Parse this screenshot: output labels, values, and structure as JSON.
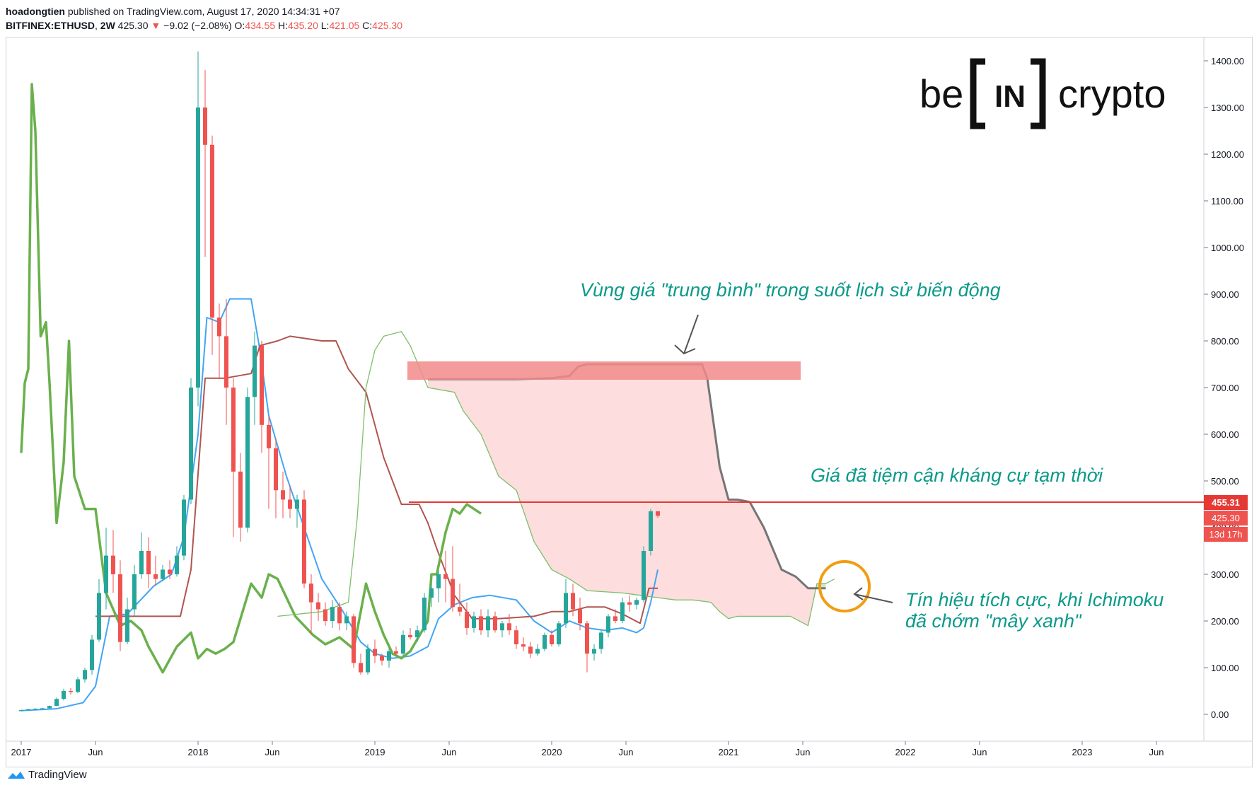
{
  "header": {
    "author": "hoadongtien",
    "published_text": "published on TradingView.com, August 17, 2020 14:34:31 +07",
    "symbol": "BITFINEX:ETHUSD",
    "interval": "2W",
    "last": "425.30",
    "change_arrow": "▼",
    "change": "−9.02 (−2.08%)",
    "o_label": "O:",
    "o": "434.55",
    "h_label": "H:",
    "h": "435.20",
    "l_label": "L:",
    "l": "421.05",
    "c_label": "C:",
    "c": "425.30"
  },
  "footer": {
    "brand": "TradingView",
    "brand_icon": "tradingview-logo-icon"
  },
  "logo": {
    "left": "be",
    "middle": "IN",
    "right": "crypto"
  },
  "colors": {
    "up": "#26a69a",
    "down": "#ef5350",
    "tenkan": "#42a5f5",
    "kijun": "#b0554f",
    "chikou": "#6ab04c",
    "span_line": "#7cbf6a",
    "cloud_red": "#fdd9d9",
    "cloud_green": "#c8e6c0",
    "resistance": "#e53935",
    "highlight": "#f28b8b",
    "annot": "#0a9a89",
    "circle": "#f39c12",
    "senkou_b_thick": "#757575"
  },
  "annotations": {
    "avg_zone": "Vùng giá \"trung bình\" trong suốt lịch sử biến động",
    "resistance": "Giá đã tiệm cận kháng cự tạm thời",
    "signal_line1": "Tín hiệu tích cực, khi Ichimoku",
    "signal_line2": "đã chớm \"mây xanh\""
  },
  "price_tags": {
    "resistance": "455.31",
    "last": "425.30",
    "countdown": "13d 17h"
  },
  "chart_data": {
    "type": "candlestick",
    "title": "BITFINEX:ETHUSD, 2W",
    "indicator": "Ichimoku Cloud",
    "ylim": [
      -40,
      1440
    ],
    "x_ticks": [
      "2017",
      "Jun",
      "2018",
      "Jun",
      "2019",
      "Jun",
      "2020",
      "Jun",
      "2021",
      "Jun",
      "2022",
      "Jun",
      "2023",
      "Jun"
    ],
    "x_tick_dates": [
      2017.0,
      2017.42,
      2018.0,
      2018.42,
      2019.0,
      2019.42,
      2020.0,
      2020.42,
      2021.0,
      2021.42,
      2022.0,
      2022.42,
      2023.0,
      2023.42
    ],
    "y_ticks": [
      0,
      100,
      200,
      300,
      400,
      500,
      600,
      700,
      800,
      900,
      1000,
      1100,
      1200,
      1300,
      1400
    ],
    "y_tick_labels": [
      "0.00",
      "100.00",
      "200.00",
      "300.00",
      "400.00",
      "500.00",
      "600.00",
      "700.00",
      "800.00",
      "900.00",
      "1000.00",
      "1100.00",
      "1200.00",
      "1300.00",
      "1400.00"
    ],
    "resistance_level": 455.31,
    "avg_zone": [
      720,
      750
    ],
    "candles": [
      {
        "t": 2017.0,
        "o": 8,
        "h": 10,
        "l": 7,
        "c": 9
      },
      {
        "t": 2017.04,
        "o": 9,
        "h": 12,
        "l": 8,
        "c": 11
      },
      {
        "t": 2017.08,
        "o": 11,
        "h": 13,
        "l": 10,
        "c": 12
      },
      {
        "t": 2017.12,
        "o": 12,
        "h": 14,
        "l": 11,
        "c": 13
      },
      {
        "t": 2017.16,
        "o": 13,
        "h": 19,
        "l": 12,
        "c": 18
      },
      {
        "t": 2017.2,
        "o": 18,
        "h": 36,
        "l": 17,
        "c": 33
      },
      {
        "t": 2017.24,
        "o": 33,
        "h": 55,
        "l": 30,
        "c": 50
      },
      {
        "t": 2017.28,
        "o": 50,
        "h": 56,
        "l": 42,
        "c": 48
      },
      {
        "t": 2017.32,
        "o": 48,
        "h": 80,
        "l": 45,
        "c": 75
      },
      {
        "t": 2017.36,
        "o": 75,
        "h": 100,
        "l": 68,
        "c": 95
      },
      {
        "t": 2017.4,
        "o": 95,
        "h": 170,
        "l": 85,
        "c": 160
      },
      {
        "t": 2017.44,
        "o": 160,
        "h": 290,
        "l": 155,
        "c": 260
      },
      {
        "t": 2017.48,
        "o": 260,
        "h": 400,
        "l": 225,
        "c": 340
      },
      {
        "t": 2017.52,
        "o": 340,
        "h": 395,
        "l": 260,
        "c": 300
      },
      {
        "t": 2017.56,
        "o": 300,
        "h": 330,
        "l": 135,
        "c": 155
      },
      {
        "t": 2017.6,
        "o": 155,
        "h": 250,
        "l": 150,
        "c": 225
      },
      {
        "t": 2017.64,
        "o": 225,
        "h": 320,
        "l": 210,
        "c": 300
      },
      {
        "t": 2017.68,
        "o": 300,
        "h": 390,
        "l": 290,
        "c": 350
      },
      {
        "t": 2017.72,
        "o": 350,
        "h": 380,
        "l": 270,
        "c": 300
      },
      {
        "t": 2017.76,
        "o": 300,
        "h": 340,
        "l": 275,
        "c": 290
      },
      {
        "t": 2017.8,
        "o": 290,
        "h": 320,
        "l": 285,
        "c": 310
      },
      {
        "t": 2017.84,
        "o": 310,
        "h": 330,
        "l": 290,
        "c": 300
      },
      {
        "t": 2017.88,
        "o": 300,
        "h": 360,
        "l": 295,
        "c": 340
      },
      {
        "t": 2017.92,
        "o": 340,
        "h": 470,
        "l": 330,
        "c": 460
      },
      {
        "t": 2017.96,
        "o": 460,
        "h": 720,
        "l": 450,
        "c": 700
      },
      {
        "t": 2018.0,
        "o": 700,
        "h": 1420,
        "l": 660,
        "c": 1300
      },
      {
        "t": 2018.04,
        "o": 1300,
        "h": 1380,
        "l": 980,
        "c": 1220
      },
      {
        "t": 2018.08,
        "o": 1220,
        "h": 1240,
        "l": 770,
        "c": 850
      },
      {
        "t": 2018.12,
        "o": 850,
        "h": 880,
        "l": 720,
        "c": 810
      },
      {
        "t": 2018.16,
        "o": 810,
        "h": 890,
        "l": 620,
        "c": 700
      },
      {
        "t": 2018.2,
        "o": 700,
        "h": 720,
        "l": 380,
        "c": 520
      },
      {
        "t": 2018.24,
        "o": 520,
        "h": 560,
        "l": 370,
        "c": 400
      },
      {
        "t": 2018.28,
        "o": 400,
        "h": 700,
        "l": 390,
        "c": 680
      },
      {
        "t": 2018.32,
        "o": 680,
        "h": 820,
        "l": 620,
        "c": 790
      },
      {
        "t": 2018.36,
        "o": 790,
        "h": 800,
        "l": 560,
        "c": 620
      },
      {
        "t": 2018.4,
        "o": 620,
        "h": 640,
        "l": 440,
        "c": 570
      },
      {
        "t": 2018.44,
        "o": 570,
        "h": 590,
        "l": 420,
        "c": 480
      },
      {
        "t": 2018.48,
        "o": 480,
        "h": 520,
        "l": 420,
        "c": 460
      },
      {
        "t": 2018.52,
        "o": 460,
        "h": 490,
        "l": 420,
        "c": 440
      },
      {
        "t": 2018.56,
        "o": 440,
        "h": 470,
        "l": 400,
        "c": 460
      },
      {
        "t": 2018.6,
        "o": 460,
        "h": 480,
        "l": 270,
        "c": 280
      },
      {
        "t": 2018.64,
        "o": 280,
        "h": 300,
        "l": 170,
        "c": 240
      },
      {
        "t": 2018.68,
        "o": 240,
        "h": 260,
        "l": 200,
        "c": 225
      },
      {
        "t": 2018.72,
        "o": 225,
        "h": 240,
        "l": 190,
        "c": 200
      },
      {
        "t": 2018.76,
        "o": 200,
        "h": 245,
        "l": 185,
        "c": 230
      },
      {
        "t": 2018.8,
        "o": 230,
        "h": 240,
        "l": 180,
        "c": 195
      },
      {
        "t": 2018.84,
        "o": 195,
        "h": 220,
        "l": 180,
        "c": 210
      },
      {
        "t": 2018.88,
        "o": 210,
        "h": 215,
        "l": 100,
        "c": 110
      },
      {
        "t": 2018.92,
        "o": 110,
        "h": 130,
        "l": 85,
        "c": 90
      },
      {
        "t": 2018.96,
        "o": 90,
        "h": 150,
        "l": 85,
        "c": 140
      },
      {
        "t": 2019.0,
        "o": 140,
        "h": 160,
        "l": 110,
        "c": 125
      },
      {
        "t": 2019.04,
        "o": 125,
        "h": 130,
        "l": 105,
        "c": 115
      },
      {
        "t": 2019.08,
        "o": 115,
        "h": 140,
        "l": 100,
        "c": 135
      },
      {
        "t": 2019.12,
        "o": 135,
        "h": 145,
        "l": 125,
        "c": 130
      },
      {
        "t": 2019.16,
        "o": 130,
        "h": 180,
        "l": 125,
        "c": 170
      },
      {
        "t": 2019.2,
        "o": 170,
        "h": 185,
        "l": 160,
        "c": 165
      },
      {
        "t": 2019.24,
        "o": 165,
        "h": 190,
        "l": 155,
        "c": 180
      },
      {
        "t": 2019.28,
        "o": 180,
        "h": 260,
        "l": 175,
        "c": 250
      },
      {
        "t": 2019.32,
        "o": 250,
        "h": 280,
        "l": 230,
        "c": 270
      },
      {
        "t": 2019.36,
        "o": 270,
        "h": 310,
        "l": 240,
        "c": 300
      },
      {
        "t": 2019.4,
        "o": 300,
        "h": 350,
        "l": 240,
        "c": 290
      },
      {
        "t": 2019.44,
        "o": 290,
        "h": 360,
        "l": 220,
        "c": 230
      },
      {
        "t": 2019.48,
        "o": 230,
        "h": 280,
        "l": 210,
        "c": 220
      },
      {
        "t": 2019.52,
        "o": 220,
        "h": 240,
        "l": 170,
        "c": 185
      },
      {
        "t": 2019.56,
        "o": 185,
        "h": 220,
        "l": 175,
        "c": 210
      },
      {
        "t": 2019.6,
        "o": 210,
        "h": 225,
        "l": 170,
        "c": 180
      },
      {
        "t": 2019.64,
        "o": 180,
        "h": 225,
        "l": 165,
        "c": 210
      },
      {
        "t": 2019.68,
        "o": 210,
        "h": 220,
        "l": 175,
        "c": 180
      },
      {
        "t": 2019.72,
        "o": 180,
        "h": 200,
        "l": 165,
        "c": 195
      },
      {
        "t": 2019.76,
        "o": 195,
        "h": 215,
        "l": 170,
        "c": 180
      },
      {
        "t": 2019.8,
        "o": 180,
        "h": 190,
        "l": 140,
        "c": 150
      },
      {
        "t": 2019.84,
        "o": 150,
        "h": 165,
        "l": 135,
        "c": 145
      },
      {
        "t": 2019.88,
        "o": 145,
        "h": 155,
        "l": 120,
        "c": 130
      },
      {
        "t": 2019.92,
        "o": 130,
        "h": 150,
        "l": 125,
        "c": 140
      },
      {
        "t": 2019.96,
        "o": 140,
        "h": 175,
        "l": 135,
        "c": 170
      },
      {
        "t": 2020.0,
        "o": 170,
        "h": 180,
        "l": 145,
        "c": 150
      },
      {
        "t": 2020.04,
        "o": 150,
        "h": 200,
        "l": 145,
        "c": 195
      },
      {
        "t": 2020.08,
        "o": 195,
        "h": 290,
        "l": 185,
        "c": 260
      },
      {
        "t": 2020.12,
        "o": 260,
        "h": 280,
        "l": 210,
        "c": 225
      },
      {
        "t": 2020.16,
        "o": 225,
        "h": 250,
        "l": 180,
        "c": 195
      },
      {
        "t": 2020.2,
        "o": 195,
        "h": 200,
        "l": 90,
        "c": 130
      },
      {
        "t": 2020.24,
        "o": 130,
        "h": 150,
        "l": 115,
        "c": 140
      },
      {
        "t": 2020.28,
        "o": 140,
        "h": 180,
        "l": 130,
        "c": 175
      },
      {
        "t": 2020.32,
        "o": 175,
        "h": 215,
        "l": 165,
        "c": 210
      },
      {
        "t": 2020.36,
        "o": 210,
        "h": 225,
        "l": 195,
        "c": 200
      },
      {
        "t": 2020.4,
        "o": 200,
        "h": 250,
        "l": 195,
        "c": 240
      },
      {
        "t": 2020.44,
        "o": 240,
        "h": 255,
        "l": 220,
        "c": 235
      },
      {
        "t": 2020.48,
        "o": 235,
        "h": 250,
        "l": 225,
        "c": 245
      },
      {
        "t": 2020.52,
        "o": 245,
        "h": 360,
        "l": 240,
        "c": 350
      },
      {
        "t": 2020.56,
        "o": 350,
        "h": 440,
        "l": 340,
        "c": 435
      },
      {
        "t": 2020.6,
        "o": 435,
        "h": 435.2,
        "l": 421.05,
        "c": 425.3
      }
    ],
    "series": [
      {
        "name": "Tenkan-sen",
        "x": [
          2017.0,
          2017.2,
          2017.35,
          2017.42,
          2017.5,
          2017.6,
          2017.75,
          2017.85,
          2017.92,
          2018.0,
          2018.05,
          2018.12,
          2018.18,
          2018.3,
          2018.35,
          2018.4,
          2018.5,
          2018.6,
          2018.7,
          2018.82,
          2018.92,
          2019.0,
          2019.1,
          2019.2,
          2019.3,
          2019.36,
          2019.45,
          2019.55,
          2019.65,
          2019.8,
          2019.9,
          2020.0,
          2020.1,
          2020.2,
          2020.3,
          2020.4,
          2020.48,
          2020.52,
          2020.56,
          2020.6
        ],
        "y": [
          8,
          12,
          25,
          60,
          210,
          215,
          275,
          300,
          380,
          600,
          850,
          840,
          890,
          890,
          780,
          640,
          510,
          400,
          290,
          220,
          155,
          130,
          120,
          125,
          145,
          205,
          235,
          250,
          255,
          245,
          200,
          175,
          200,
          185,
          180,
          185,
          175,
          185,
          240,
          310
        ]
      },
      {
        "name": "Kijun-sen",
        "x": [
          2017.42,
          2017.9,
          2017.96,
          2018.04,
          2018.15,
          2018.3,
          2018.35,
          2018.45,
          2018.52,
          2018.7,
          2018.78,
          2018.85,
          2018.95,
          2019.05,
          2019.15,
          2019.25,
          2019.3,
          2019.35,
          2019.45,
          2019.55,
          2019.7,
          2019.9,
          2020.0,
          2020.1,
          2020.2,
          2020.3,
          2020.4,
          2020.5,
          2020.55,
          2020.6
        ],
        "y": [
          210,
          210,
          310,
          720,
          720,
          730,
          790,
          800,
          810,
          800,
          800,
          740,
          690,
          550,
          450,
          450,
          410,
          355,
          255,
          205,
          205,
          210,
          220,
          220,
          230,
          230,
          215,
          195,
          270,
          270
        ]
      },
      {
        "name": "Chikou Span",
        "x": [
          2017.0,
          2017.02,
          2017.04,
          2017.06,
          2017.08,
          2017.11,
          2017.14,
          2017.16,
          2017.2,
          2017.24,
          2017.27,
          2017.3,
          2017.36,
          2017.42,
          2017.48,
          2017.56,
          2017.62,
          2017.68,
          2017.72,
          2017.8,
          2017.88,
          2017.96,
          2018.0,
          2018.05,
          2018.1,
          2018.15,
          2018.2,
          2018.3,
          2018.36,
          2018.4,
          2018.45,
          2018.5,
          2018.55,
          2018.6,
          2018.65,
          2018.72,
          2018.8,
          2018.88,
          2018.95,
          2019.0,
          2019.05,
          2019.1,
          2019.15,
          2019.2,
          2019.3,
          2019.32,
          2019.35,
          2019.4,
          2019.44,
          2019.48,
          2019.52,
          2019.56,
          2019.6
        ],
        "y": [
          560,
          710,
          740,
          1350,
          1250,
          810,
          840,
          710,
          410,
          540,
          800,
          510,
          440,
          440,
          260,
          190,
          200,
          180,
          145,
          90,
          145,
          175,
          120,
          140,
          130,
          140,
          155,
          280,
          250,
          300,
          290,
          250,
          210,
          190,
          170,
          150,
          165,
          140,
          280,
          220,
          170,
          130,
          120,
          135,
          200,
          300,
          300,
          390,
          440,
          430,
          450,
          440,
          430
        ]
      },
      {
        "name": "Senkou Span A",
        "x": [
          2018.45,
          2018.7,
          2018.85,
          2018.9,
          2018.95,
          2019.0,
          2019.05,
          2019.15,
          2019.2,
          2019.3,
          2019.45,
          2019.5,
          2019.6,
          2019.7,
          2019.8,
          2019.9,
          2020.0,
          2020.1,
          2020.2,
          2020.4,
          2020.5,
          2020.6,
          2020.7,
          2020.8,
          2020.9,
          2020.95,
          2021.0,
          2021.05,
          2021.2,
          2021.35,
          2021.45,
          2021.5,
          2021.55,
          2021.6
        ],
        "y": [
          210,
          220,
          240,
          420,
          700,
          780,
          810,
          820,
          790,
          700,
          690,
          650,
          600,
          510,
          480,
          370,
          310,
          290,
          265,
          260,
          255,
          250,
          245,
          245,
          240,
          220,
          205,
          210,
          210,
          210,
          190,
          280,
          280,
          290
        ]
      },
      {
        "name": "Senkou Span B",
        "x": [
          2019.3,
          2019.6,
          2019.8,
          2020.0,
          2020.1,
          2020.15,
          2020.2,
          2020.3,
          2020.4,
          2020.5,
          2020.7,
          2020.8,
          2020.85,
          2020.88,
          2020.95,
          2021.0,
          2021.05,
          2021.12,
          2021.2,
          2021.3,
          2021.38,
          2021.45,
          2021.5,
          2021.55
        ],
        "y": [
          718,
          718,
          718,
          720,
          725,
          745,
          750,
          750,
          750,
          750,
          750,
          750,
          750,
          720,
          530,
          460,
          460,
          455,
          400,
          310,
          295,
          270,
          270,
          270
        ]
      }
    ]
  }
}
